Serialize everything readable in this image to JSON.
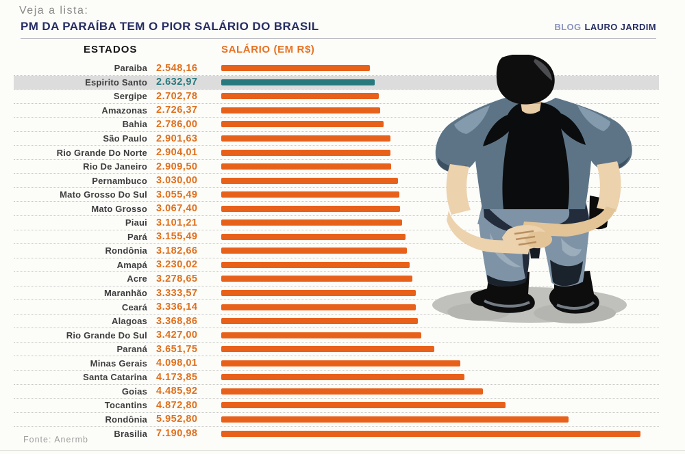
{
  "page": {
    "pre_title": "Veja a lista:",
    "source": "Fonte: Anermb"
  },
  "header": {
    "title": "PM DA PARAÍBA TEM O PIOR SALÁRIO DO BRASIL",
    "blog_prefix": "BLOG",
    "blog_name": "LAURO JARDIM"
  },
  "columns": {
    "states": "ESTADOS",
    "salary": "SALÁRIO (EM R$)"
  },
  "colors": {
    "bar_orange": "#e8611b",
    "value_orange": "#e0701d",
    "highlight_teal": "#27797e",
    "row_highlight_bg": "#dcdcdc",
    "title_navy": "#272e63",
    "salary_header_orange": "#e8701f"
  },
  "illustration": {
    "name": "police-officer-back-view"
  },
  "chart_data": {
    "type": "bar",
    "orientation": "horizontal",
    "title": "PM DA PARAÍBA TEM O PIOR SALÁRIO DO BRASIL",
    "xlabel": "SALÁRIO (EM R$)",
    "ylabel": "ESTADOS",
    "xlim": [
      0,
      7200
    ],
    "grid": false,
    "legend": false,
    "bar_color": "#e8611b",
    "highlight_color": "#27797e",
    "highlight_index": 1,
    "highlighted_category": "Espirito Santo",
    "categories": [
      "Paraiba",
      "Espirito Santo",
      "Sergipe",
      "Amazonas",
      "Bahia",
      "São Paulo",
      "Rio Grande Do Norte",
      "Rio De Janeiro",
      "Pernambuco",
      "Mato Grosso Do Sul",
      "Mato Grosso",
      "Piaui",
      "Pará",
      "Rondônia",
      "Amapá",
      "Acre",
      "Maranhão",
      "Ceará",
      "Alagoas",
      "Rio Grande Do Sul",
      "Paraná",
      "Minas Gerais",
      "Santa Catarina",
      "Goias",
      "Tocantins",
      "Rondônia",
      "Brasilia"
    ],
    "values": [
      2548.16,
      2632.97,
      2702.78,
      2726.37,
      2786.0,
      2901.63,
      2904.01,
      2909.5,
      3030.0,
      3055.49,
      3067.4,
      3101.21,
      3155.49,
      3182.66,
      3230.02,
      3278.65,
      3333.57,
      3336.14,
      3368.86,
      3427.0,
      3651.75,
      4098.01,
      4173.85,
      4485.92,
      4872.8,
      5952.8,
      7190.98
    ],
    "value_labels": [
      "2.548,16",
      "2.632,97",
      "2.702,78",
      "2.726,37",
      "2.786,00",
      "2.901,63",
      "2.904,01",
      "2.909,50",
      "3.030,00",
      "3.055,49",
      "3.067,40",
      "3.101,21",
      "3.155,49",
      "3.182,66",
      "3.230,02",
      "3.278,65",
      "3.333,57",
      "3.336,14",
      "3.368,86",
      "3.427,00",
      "3.651,75",
      "4.098,01",
      "4.173,85",
      "4.485,92",
      "4.872,80",
      "5.952,80",
      "7.190,98"
    ]
  }
}
